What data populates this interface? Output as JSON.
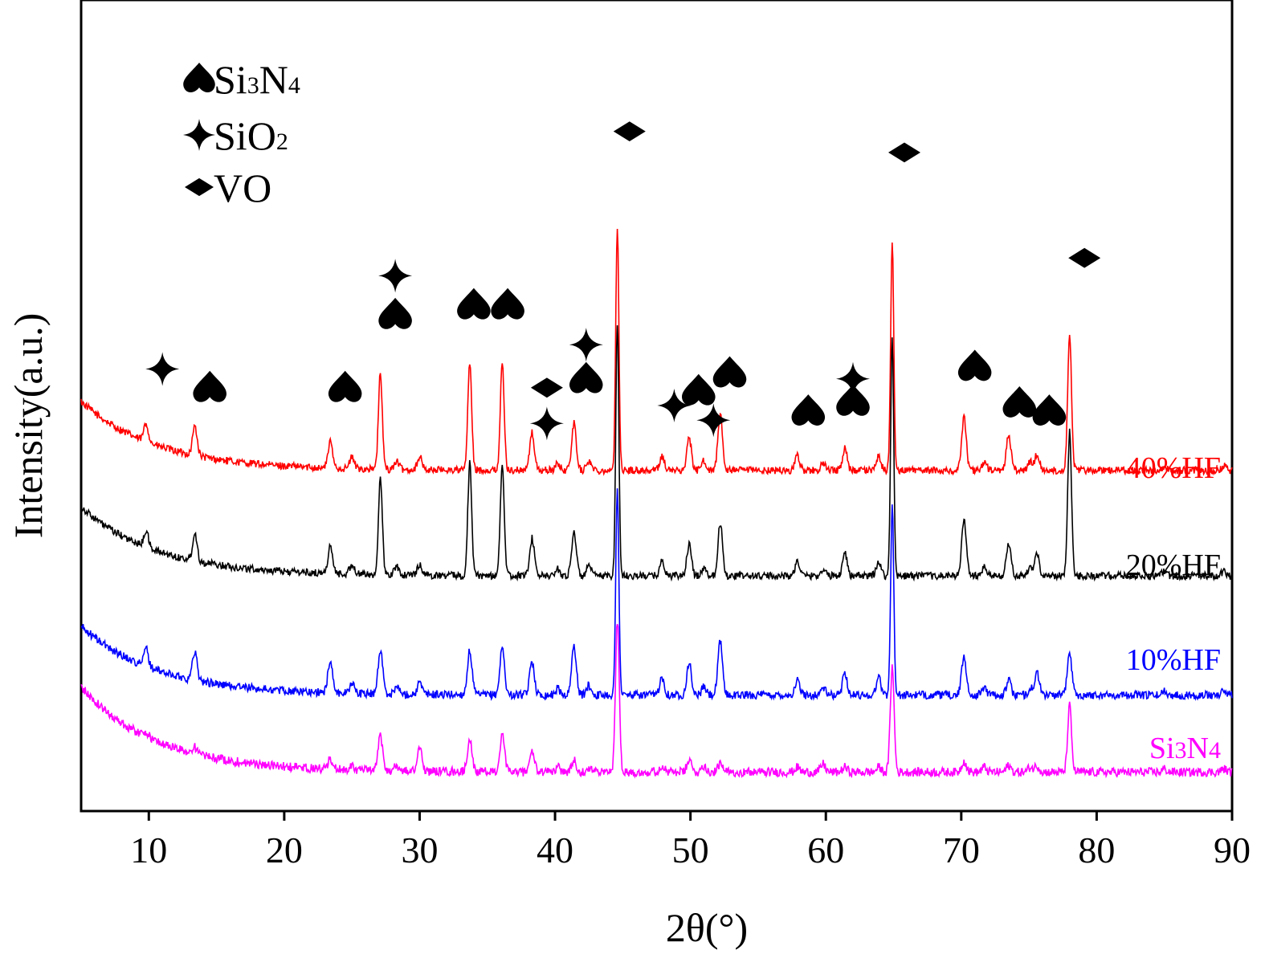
{
  "chart_data": {
    "type": "line",
    "xlabel": "2θ(°)",
    "ylabel": "Intensity(a.u.)",
    "xlim": [
      5,
      90
    ],
    "ylim": [
      0,
      100
    ],
    "x_ticks": [
      10,
      20,
      30,
      40,
      50,
      60,
      70,
      80,
      90
    ],
    "y_ticks": [],
    "grid": false,
    "legend": {
      "placement": "top-left",
      "entries": [
        {
          "symbol": "spade",
          "base": "Si",
          "sub1": "3",
          "mid": "N",
          "sub2": "4"
        },
        {
          "symbol": "star",
          "base": "SiO",
          "sub1": "2",
          "mid": "",
          "sub2": ""
        },
        {
          "symbol": "diamond",
          "base": "VO",
          "sub1": "",
          "mid": "",
          "sub2": ""
        }
      ]
    },
    "peak_positions": [
      9.8,
      13.4,
      23.4,
      25.0,
      27.1,
      28.3,
      30.0,
      33.7,
      36.1,
      38.3,
      40.2,
      41.4,
      42.5,
      44.6,
      47.9,
      49.9,
      51.0,
      52.2,
      57.9,
      59.8,
      61.4,
      63.9,
      64.9,
      70.2,
      71.7,
      73.5,
      75.1,
      75.6,
      78.0,
      85.0,
      89.4
    ],
    "series": [
      {
        "name": "40%HF",
        "label_parts": {
          "base": "40%HF",
          "sub1": "",
          "mid": "",
          "sub2": ""
        },
        "color": "#ff0000",
        "baseline": 42.0,
        "start_rise": 8.5,
        "noise": 0.45,
        "peak_heights": [
          2.2,
          3.6,
          3.2,
          1.4,
          11.8,
          1.0,
          1.6,
          13.2,
          13.0,
          4.6,
          0.8,
          5.8,
          1.2,
          30.2,
          1.8,
          4.0,
          1.2,
          6.8,
          1.8,
          0.8,
          2.7,
          1.8,
          28.3,
          6.5,
          1.0,
          4.4,
          1.0,
          2.0,
          16.8,
          0.5,
          0.6
        ]
      },
      {
        "name": "20%HF",
        "label_parts": {
          "base": "20%HF",
          "sub1": "",
          "mid": "",
          "sub2": ""
        },
        "color": "#000000",
        "baseline": 29.0,
        "start_rise": 8.5,
        "noise": 0.45,
        "peak_heights": [
          2.0,
          3.4,
          3.3,
          1.2,
          11.8,
          1.0,
          1.4,
          13.8,
          13.8,
          4.6,
          0.8,
          5.5,
          1.2,
          31.2,
          1.8,
          3.8,
          1.0,
          6.5,
          1.8,
          0.8,
          2.9,
          1.8,
          29.4,
          6.9,
          1.0,
          4.0,
          1.0,
          2.6,
          17.8,
          0.5,
          0.6
        ]
      },
      {
        "name": "10%HF",
        "label_parts": {
          "base": "10%HF",
          "sub1": "",
          "mid": "",
          "sub2": ""
        },
        "color": "#0000ff",
        "baseline": 14.3,
        "start_rise": 8.5,
        "noise": 0.5,
        "peak_heights": [
          2.2,
          3.6,
          4.0,
          1.3,
          5.4,
          1.0,
          1.4,
          5.4,
          5.8,
          4.2,
          0.8,
          6.1,
          1.2,
          25.6,
          2.2,
          4.0,
          1.0,
          6.6,
          1.8,
          0.9,
          2.8,
          2.2,
          23.6,
          4.8,
          1.0,
          1.8,
          0.8,
          2.7,
          5.1,
          0.5,
          0.6
        ]
      },
      {
        "name": "Si3N4",
        "label_parts": {
          "base": "Si",
          "sub1": "3",
          "mid": "N",
          "sub2": "4"
        },
        "color": "#ff00ff",
        "baseline": 4.8,
        "start_rise": 10.5,
        "noise": 0.55,
        "peak_heights": [
          0.6,
          0.8,
          1.2,
          0.6,
          4.2,
          0.6,
          3.0,
          4.0,
          4.4,
          2.6,
          0.6,
          1.4,
          0.6,
          18.6,
          0.8,
          1.4,
          0.8,
          1.0,
          0.6,
          1.0,
          0.6,
          0.6,
          13.0,
          1.4,
          0.6,
          0.8,
          0.6,
          0.8,
          8.2,
          0.4,
          0.4
        ]
      }
    ],
    "annotations": [
      {
        "symbol": "star",
        "x": 11.0,
        "y": 54.5
      },
      {
        "symbol": "spade",
        "x": 14.5,
        "y": 52.2
      },
      {
        "symbol": "spade",
        "x": 24.5,
        "y": 52.2
      },
      {
        "symbol": "star",
        "x": 28.2,
        "y": 66.0
      },
      {
        "symbol": "spade",
        "x": 28.2,
        "y": 61.2
      },
      {
        "symbol": "spade",
        "x": 34.0,
        "y": 62.4
      },
      {
        "symbol": "spade",
        "x": 36.5,
        "y": 62.4
      },
      {
        "symbol": "diamond",
        "x": 39.4,
        "y": 52.2
      },
      {
        "symbol": "star",
        "x": 39.4,
        "y": 47.8
      },
      {
        "symbol": "star",
        "x": 42.3,
        "y": 57.5
      },
      {
        "symbol": "spade",
        "x": 42.3,
        "y": 53.3
      },
      {
        "symbol": "diamond",
        "x": 45.5,
        "y": 83.8
      },
      {
        "symbol": "star",
        "x": 48.8,
        "y": 50.0
      },
      {
        "symbol": "spade",
        "x": 50.6,
        "y": 51.8
      },
      {
        "symbol": "star",
        "x": 51.7,
        "y": 48.2
      },
      {
        "symbol": "spade",
        "x": 52.9,
        "y": 54.0
      },
      {
        "symbol": "spade",
        "x": 58.7,
        "y": 49.3
      },
      {
        "symbol": "star",
        "x": 62.0,
        "y": 53.3
      },
      {
        "symbol": "spade",
        "x": 62.0,
        "y": 50.5
      },
      {
        "symbol": "diamond",
        "x": 65.8,
        "y": 81.2
      },
      {
        "symbol": "spade",
        "x": 71.0,
        "y": 54.8
      },
      {
        "symbol": "spade",
        "x": 74.3,
        "y": 50.3
      },
      {
        "symbol": "spade",
        "x": 76.5,
        "y": 49.3
      },
      {
        "symbol": "diamond",
        "x": 79.1,
        "y": 68.2
      }
    ]
  }
}
